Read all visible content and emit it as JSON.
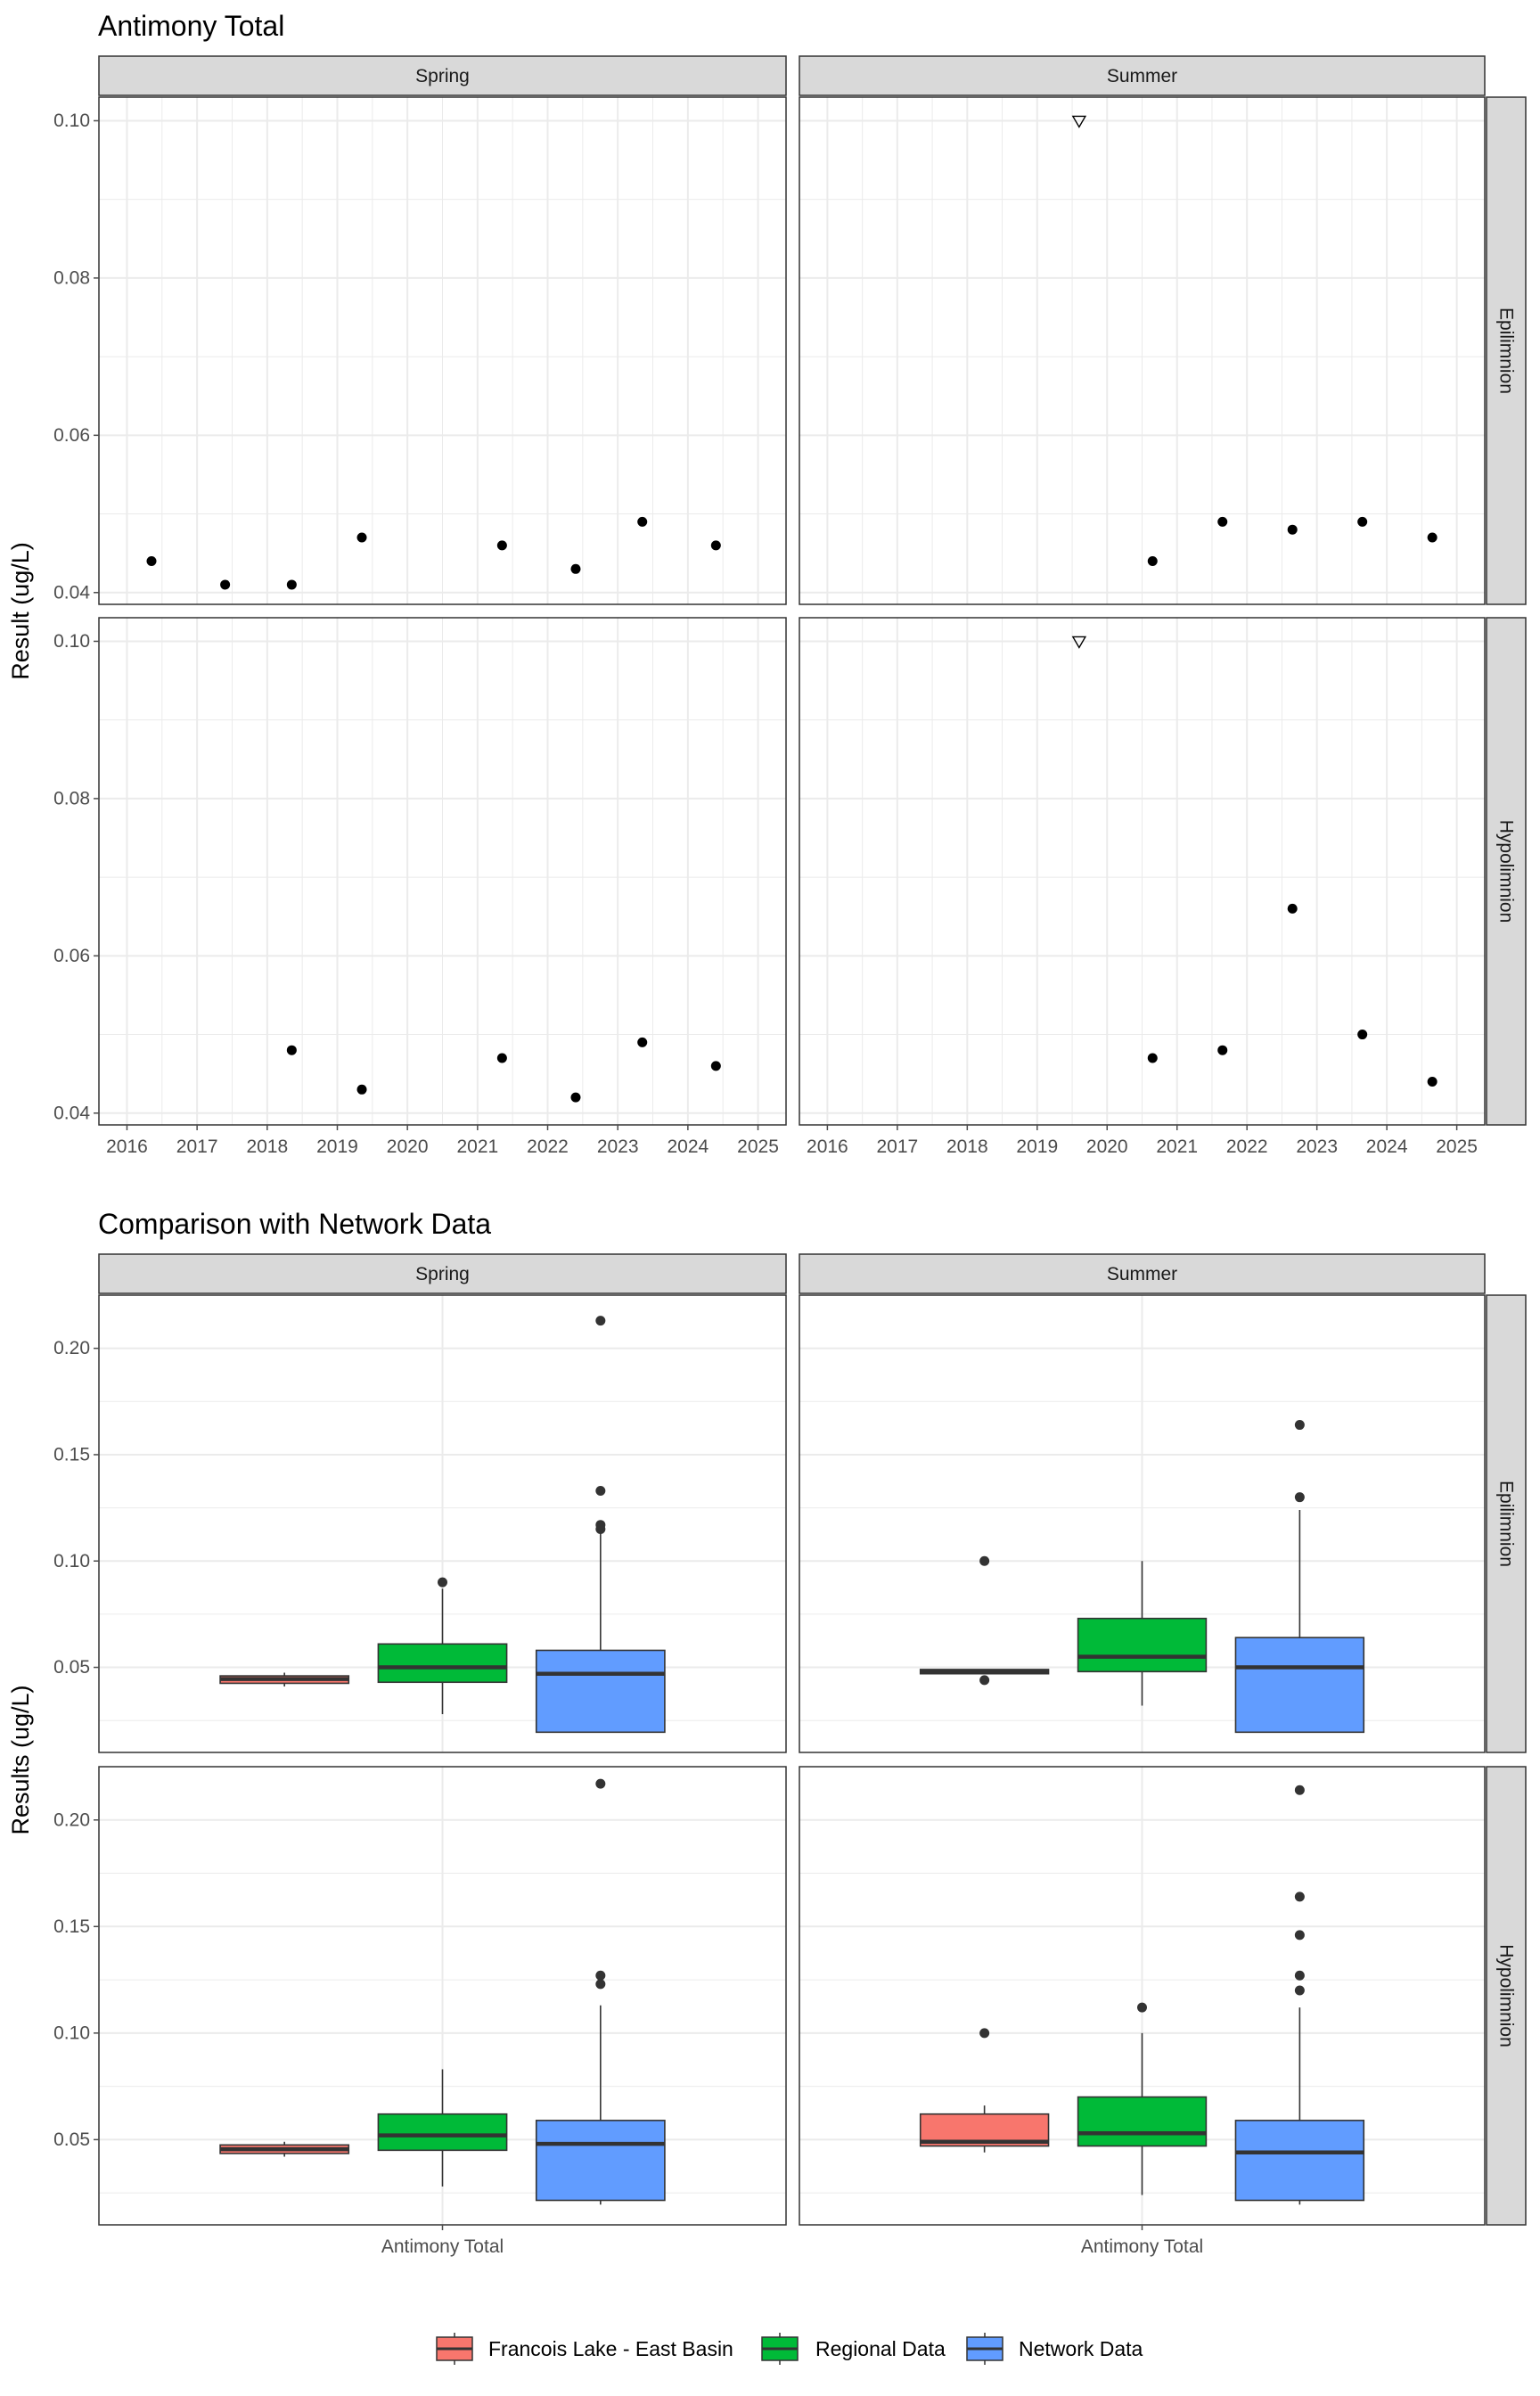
{
  "chart_data": [
    {
      "type": "scatter",
      "title": "Antimony Total",
      "xlabel": "",
      "ylabel": "Result (ug/L)",
      "x_ticks": [
        "2016",
        "2017",
        "2018",
        "2019",
        "2020",
        "2021",
        "2022",
        "2023",
        "2024",
        "2025"
      ],
      "y_ticks": [
        "0.04",
        "0.06",
        "0.08",
        "0.10"
      ],
      "xlim": [
        2015.6,
        2025.4
      ],
      "ylim": [
        0.0385,
        0.103
      ],
      "grid": true,
      "facet_columns": [
        "Spring",
        "Summer"
      ],
      "facet_rows": [
        "Epilimnion",
        "Hypolimnion"
      ],
      "panels": [
        {
          "season": "Spring",
          "depth": "Epilimnion",
          "points": [
            {
              "x": 2016.35,
              "y": 0.044
            },
            {
              "x": 2017.4,
              "y": 0.041
            },
            {
              "x": 2018.35,
              "y": 0.041
            },
            {
              "x": 2019.35,
              "y": 0.047
            },
            {
              "x": 2021.35,
              "y": 0.046
            },
            {
              "x": 2022.4,
              "y": 0.043
            },
            {
              "x": 2023.35,
              "y": 0.049
            },
            {
              "x": 2024.4,
              "y": 0.046
            }
          ],
          "open_triangle_points": []
        },
        {
          "season": "Summer",
          "depth": "Epilimnion",
          "points": [
            {
              "x": 2020.65,
              "y": 0.044
            },
            {
              "x": 2021.65,
              "y": 0.049
            },
            {
              "x": 2022.65,
              "y": 0.048
            },
            {
              "x": 2023.65,
              "y": 0.049
            },
            {
              "x": 2024.65,
              "y": 0.047
            }
          ],
          "open_triangle_points": [
            {
              "x": 2019.6,
              "y": 0.1
            }
          ]
        },
        {
          "season": "Spring",
          "depth": "Hypolimnion",
          "points": [
            {
              "x": 2018.35,
              "y": 0.048
            },
            {
              "x": 2019.35,
              "y": 0.043
            },
            {
              "x": 2021.35,
              "y": 0.047
            },
            {
              "x": 2022.4,
              "y": 0.042
            },
            {
              "x": 2023.35,
              "y": 0.049
            },
            {
              "x": 2024.4,
              "y": 0.046
            }
          ],
          "open_triangle_points": []
        },
        {
          "season": "Summer",
          "depth": "Hypolimnion",
          "points": [
            {
              "x": 2020.65,
              "y": 0.047
            },
            {
              "x": 2021.65,
              "y": 0.048
            },
            {
              "x": 2022.65,
              "y": 0.066
            },
            {
              "x": 2023.65,
              "y": 0.05
            },
            {
              "x": 2024.65,
              "y": 0.044
            }
          ],
          "open_triangle_points": [
            {
              "x": 2019.6,
              "y": 0.1
            }
          ]
        }
      ]
    },
    {
      "type": "box",
      "title": "Comparison with Network Data",
      "xlabel": "",
      "ylabel": "Results (ug/L)",
      "category": "Antimony Total",
      "y_ticks": [
        "0.05",
        "0.10",
        "0.15",
        "0.20"
      ],
      "ylim": [
        0.01,
        0.225
      ],
      "grid": true,
      "facet_columns": [
        "Spring",
        "Summer"
      ],
      "facet_rows": [
        "Epilimnion",
        "Hypolimnion"
      ],
      "legend_position": "bottom",
      "series": [
        {
          "name": "Francois Lake - East Basin",
          "color": "#F8766D"
        },
        {
          "name": "Regional Data",
          "color": "#00BA38"
        },
        {
          "name": "Network Data",
          "color": "#619CFF"
        }
      ],
      "panels": [
        {
          "season": "Spring",
          "depth": "Epilimnion",
          "boxes": [
            {
              "series": "Francois Lake - East Basin",
              "whisker_low": 0.041,
              "q1": 0.0425,
              "median": 0.0445,
              "q3": 0.046,
              "whisker_high": 0.0475,
              "outliers": []
            },
            {
              "series": "Regional Data",
              "whisker_low": 0.028,
              "q1": 0.043,
              "median": 0.05,
              "q3": 0.061,
              "whisker_high": 0.087,
              "outliers": [
                0.09
              ]
            },
            {
              "series": "Network Data",
              "whisker_low": 0.0195,
              "q1": 0.0195,
              "median": 0.047,
              "q3": 0.058,
              "whisker_high": 0.113,
              "outliers": [
                0.115,
                0.117,
                0.133,
                0.213
              ]
            }
          ]
        },
        {
          "season": "Summer",
          "depth": "Epilimnion",
          "boxes": [
            {
              "series": "Francois Lake - East Basin",
              "whisker_low": 0.047,
              "q1": 0.047,
              "median": 0.048,
              "q3": 0.049,
              "whisker_high": 0.049,
              "outliers": [
                0.044,
                0.1
              ]
            },
            {
              "series": "Regional Data",
              "whisker_low": 0.032,
              "q1": 0.048,
              "median": 0.055,
              "q3": 0.073,
              "whisker_high": 0.1,
              "outliers": []
            },
            {
              "series": "Network Data",
              "whisker_low": 0.0195,
              "q1": 0.0195,
              "median": 0.05,
              "q3": 0.064,
              "whisker_high": 0.124,
              "outliers": [
                0.13,
                0.164
              ]
            }
          ]
        },
        {
          "season": "Spring",
          "depth": "Hypolimnion",
          "boxes": [
            {
              "series": "Francois Lake - East Basin",
              "whisker_low": 0.042,
              "q1": 0.0435,
              "median": 0.0455,
              "q3": 0.0475,
              "whisker_high": 0.049,
              "outliers": []
            },
            {
              "series": "Regional Data",
              "whisker_low": 0.028,
              "q1": 0.045,
              "median": 0.052,
              "q3": 0.062,
              "whisker_high": 0.083,
              "outliers": []
            },
            {
              "series": "Network Data",
              "whisker_low": 0.0195,
              "q1": 0.0215,
              "median": 0.048,
              "q3": 0.059,
              "whisker_high": 0.113,
              "outliers": [
                0.123,
                0.127,
                0.217
              ]
            }
          ]
        },
        {
          "season": "Summer",
          "depth": "Hypolimnion",
          "boxes": [
            {
              "series": "Francois Lake - East Basin",
              "whisker_low": 0.044,
              "q1": 0.047,
              "median": 0.049,
              "q3": 0.062,
              "whisker_high": 0.066,
              "outliers": [
                0.1
              ]
            },
            {
              "series": "Regional Data",
              "whisker_low": 0.024,
              "q1": 0.047,
              "median": 0.053,
              "q3": 0.07,
              "whisker_high": 0.1,
              "outliers": [
                0.112
              ]
            },
            {
              "series": "Network Data",
              "whisker_low": 0.0195,
              "q1": 0.0215,
              "median": 0.044,
              "q3": 0.059,
              "whisker_high": 0.112,
              "outliers": [
                0.12,
                0.127,
                0.146,
                0.164,
                0.214
              ]
            }
          ]
        }
      ]
    }
  ]
}
